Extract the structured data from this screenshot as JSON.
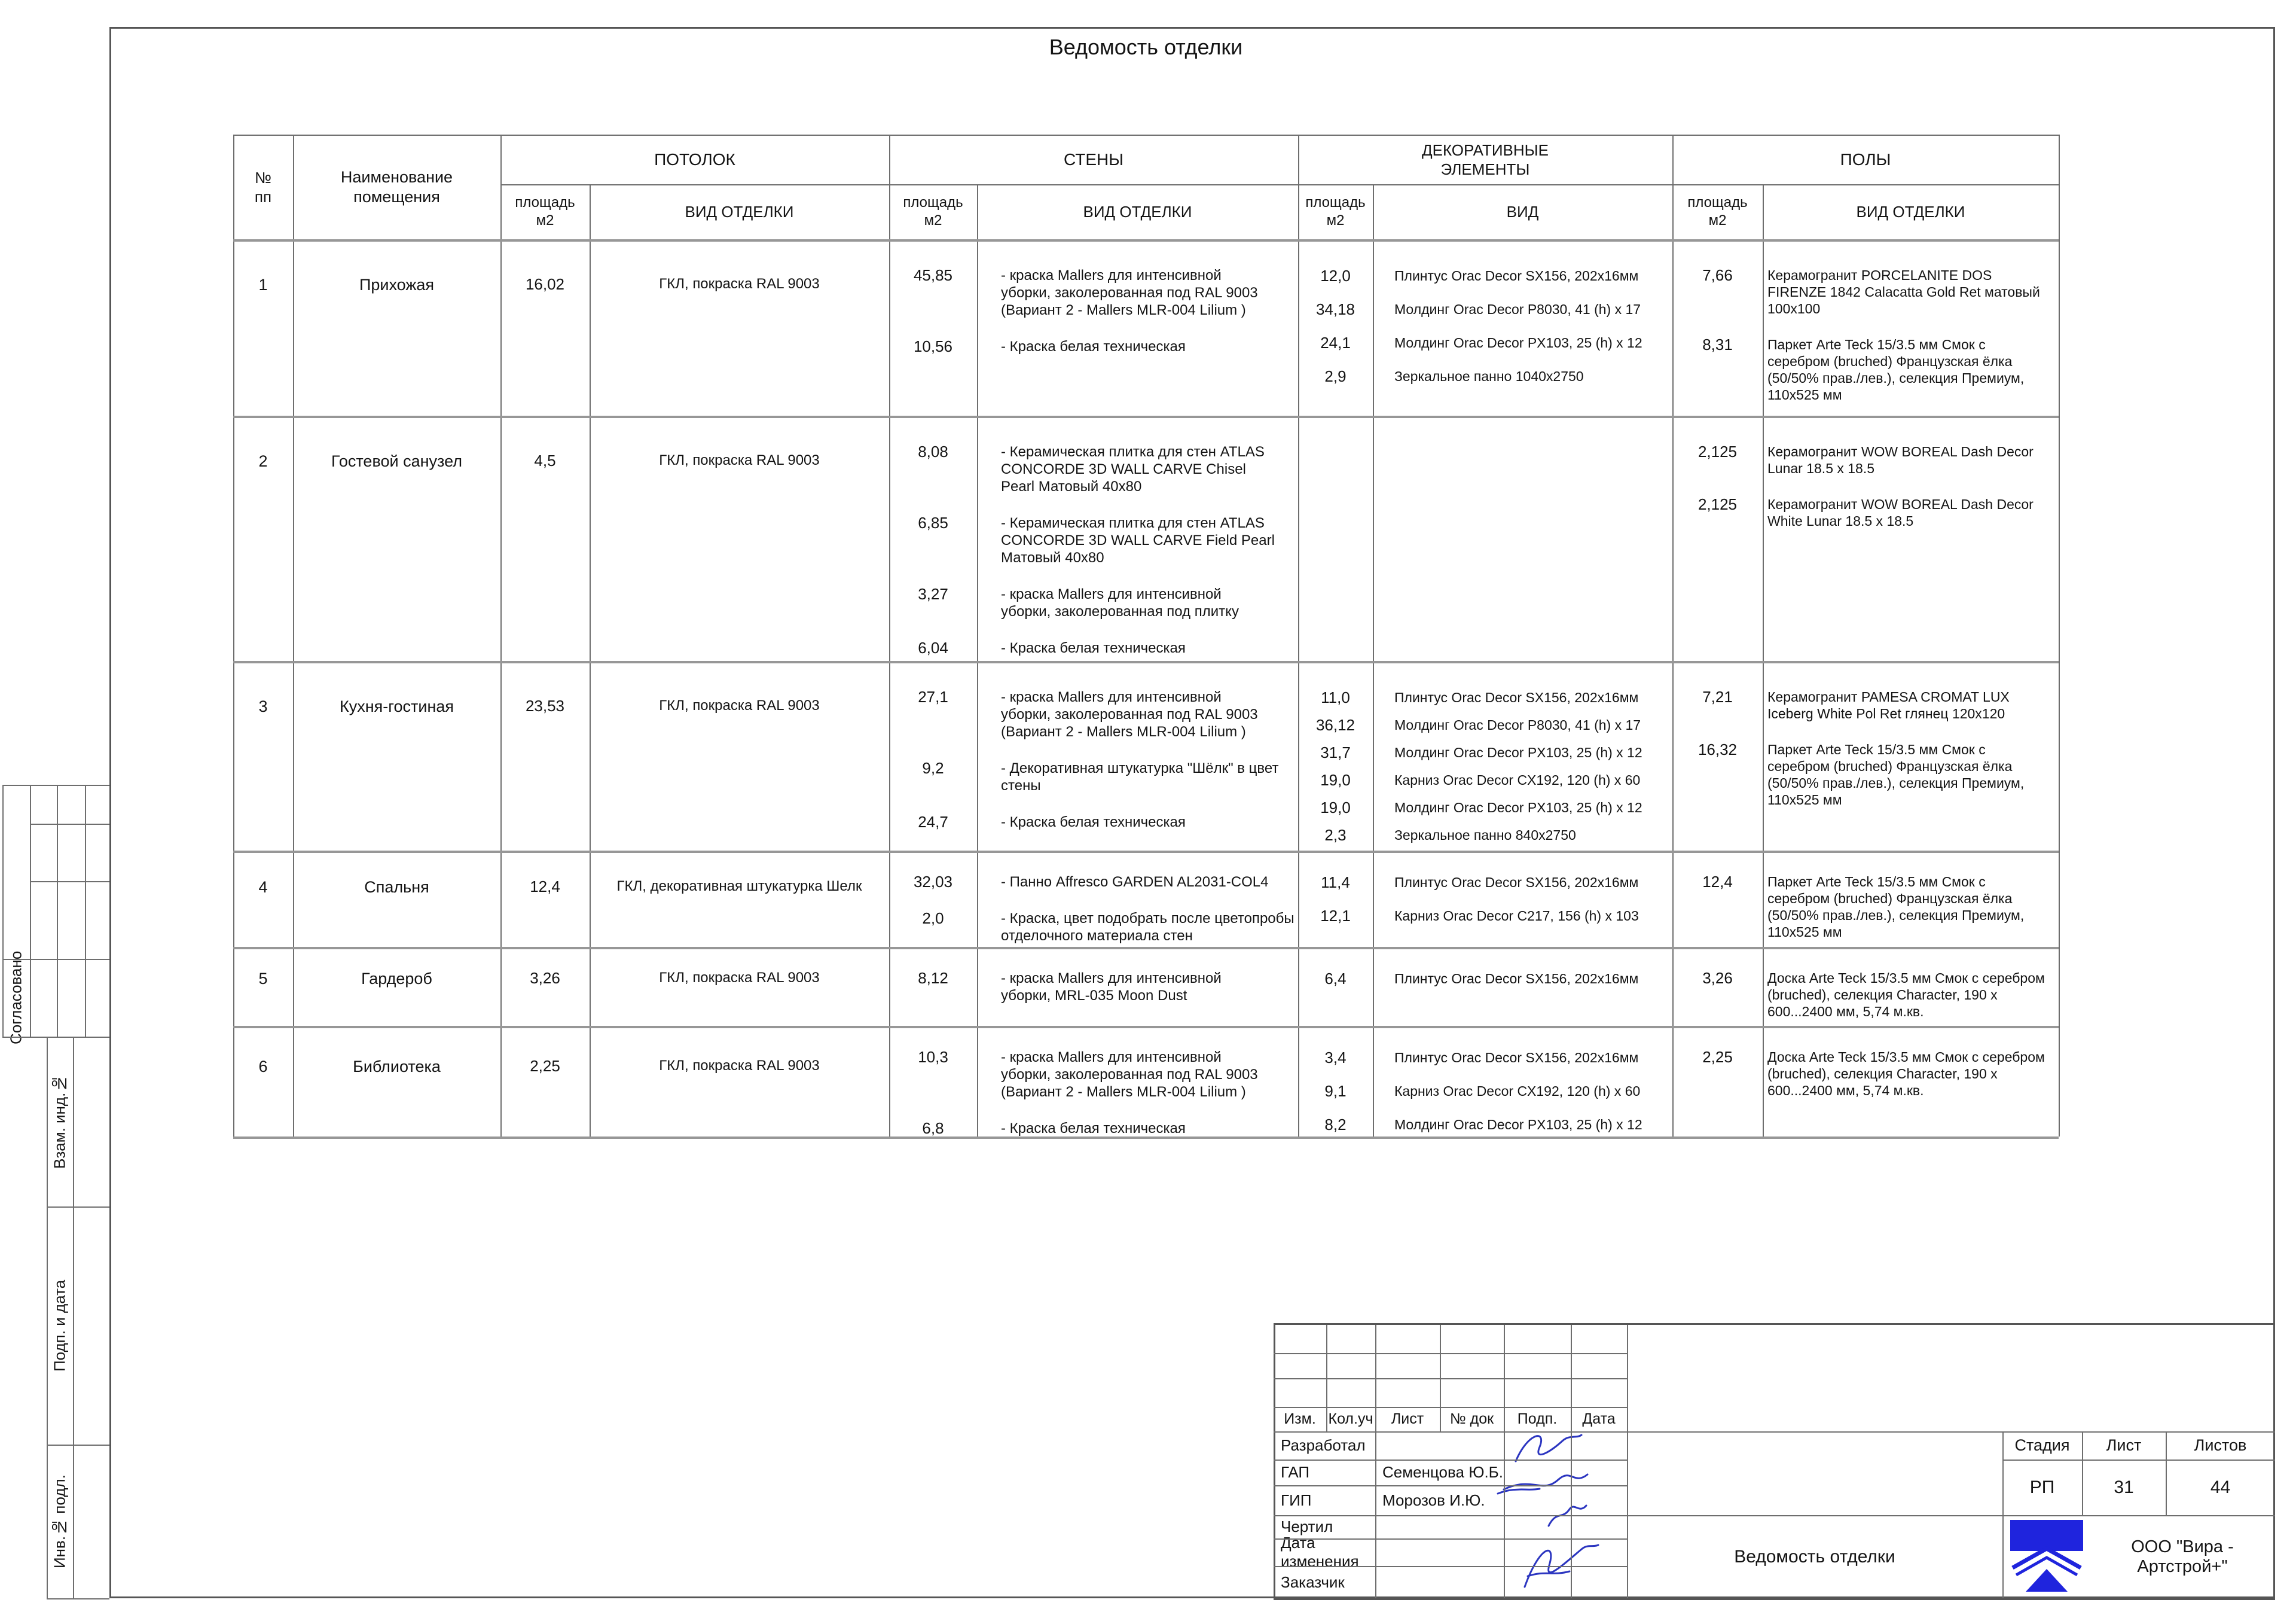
{
  "page_title": "Ведомость отделки",
  "table": {
    "headers": {
      "num": "№\nпп",
      "room": "Наименование\nпомещения",
      "area": "площадь\nм2",
      "finish_type": "ВИД  ОТДЕЛКИ",
      "vid": "ВИД",
      "groups": {
        "ceiling": "ПОТОЛОК",
        "walls": "СТЕНЫ",
        "decor": "ДЕКОРАТИВНЫЕ\nЭЛЕМЕНТЫ",
        "floors": "ПОЛЫ"
      }
    },
    "rows": [
      {
        "num": "1",
        "room": "Прихожая",
        "ceiling": {
          "area": "16,02",
          "desc": "ГКЛ, покраска RAL 9003"
        },
        "walls": [
          {
            "area": "45,85",
            "desc": "- краска Mallers для интенсивной\nуборки, заколерованная под RAL 9003\n(Вариант 2 - Mallers MLR-004 Lilium )"
          },
          {
            "area": "10,56",
            "desc": "- Краска белая техническая"
          }
        ],
        "decor": [
          {
            "area": "12,0",
            "desc": "Плинтус Orac Decor SX156,  202х16мм"
          },
          {
            "area": "34,18",
            "desc": "Молдинг Orac Decor P8030, 41 (h) х 17"
          },
          {
            "area": "24,1",
            "desc": "Молдинг Orac Decor PX103,  25 (h) х 12"
          },
          {
            "area": "2,9",
            "desc": "Зеркальное панно 1040х2750"
          }
        ],
        "floors": [
          {
            "area": "7,66",
            "desc": "Керамогранит PORCELANITE DOS\nFIRENZE 1842 Calacatta Gold Ret матовый\n100х100"
          },
          {
            "area": "8,31",
            "desc": "Паркет Arte Teck 15/3.5 мм  Смок с\nсеребром (bruched) Французская ёлка\n(50/50% прав./лев.), селекция Премиум,\n110х525 мм"
          }
        ]
      },
      {
        "num": "2",
        "room": "Гостевой санузел",
        "ceiling": {
          "area": "4,5",
          "desc": "ГКЛ, покраска RAL 9003"
        },
        "walls": [
          {
            "area": "8,08",
            "desc": "- Керамическая плитка для стен ATLAS\nCONCORDE 3D WALL CARVE Chisel\nPearl Матовый 40х80"
          },
          {
            "area": "6,85",
            "desc": "- Керамическая плитка для стен ATLAS\nCONCORDE 3D WALL CARVE Field Pearl\nМатовый 40х80"
          },
          {
            "area": "3,27",
            "desc": "- краска Mallers для интенсивной\nуборки, заколерованная под плитку"
          },
          {
            "area": "6,04",
            "desc": "- Краска белая техническая"
          }
        ],
        "decor": [],
        "floors": [
          {
            "area": "2,125",
            "desc": "Керамогранит WOW BOREAL Dash Decor\nLunar 18.5 х 18.5"
          },
          {
            "area": "2,125",
            "desc": "Керамогранит WOW BOREAL Dash Decor\nWhite Lunar 18.5 х 18.5"
          }
        ]
      },
      {
        "num": "3",
        "room": "Кухня-гостиная",
        "ceiling": {
          "area": "23,53",
          "desc": "ГКЛ, покраска RAL 9003"
        },
        "walls": [
          {
            "area": "27,1",
            "desc": "- краска Mallers для интенсивной\nуборки, заколерованная под RAL 9003\n(Вариант 2 - Mallers MLR-004 Lilium )"
          },
          {
            "area": "9,2",
            "desc": "- Декоративная штукатурка \"Шёлк\" в цвет\nстены"
          },
          {
            "area": "24,7",
            "desc": "- Краска белая техническая"
          }
        ],
        "decor": [
          {
            "area": "11,0",
            "desc": "Плинтус Orac Decor SX156,  202х16мм"
          },
          {
            "area": "36,12",
            "desc": "Молдинг Orac Decor P8030, 41 (h) х 17"
          },
          {
            "area": "31,7",
            "desc": "Молдинг Orac Decor PX103,  25 (h) х 12"
          },
          {
            "area": "19,0",
            "desc": "Карниз Orac Decor CX192,  120 (h) х 60"
          },
          {
            "area": "19,0",
            "desc": "Молдинг Orac Decor PX103, 25 (h) х 12"
          },
          {
            "area": "2,3",
            "desc": "Зеркальное панно 840х2750"
          }
        ],
        "floors": [
          {
            "area": "7,21",
            "desc": "Керамогранит PAMESA CROMAT LUX\nIceberg White Pol Ret глянец 120х120"
          },
          {
            "area": "16,32",
            "desc": "Паркет Arte Teck 15/3.5 мм  Смок с\nсеребром (bruched) Французская ёлка\n(50/50% прав./лев.), селекция Премиум,\n110х525 мм"
          }
        ]
      },
      {
        "num": "4",
        "room": "Спальня",
        "ceiling": {
          "area": "12,4",
          "desc": "ГКЛ, декоративная штукатурка Шелк"
        },
        "walls": [
          {
            "area": "32,03",
            "desc": "- Панно Affresco GARDEN AL2031-COL4"
          },
          {
            "area": "2,0",
            "desc": "- Краска, цвет подобрать после цветопробы\nотделочного материала стен"
          }
        ],
        "decor": [
          {
            "area": "11,4",
            "desc": "Плинтус Orac Decor SX156,  202х16мм"
          },
          {
            "area": "12,1",
            "desc": "Карниз Orac Decor C217, 156 (h) х 103"
          }
        ],
        "floors": [
          {
            "area": "12,4",
            "desc": "Паркет Arte Teck 15/3.5 мм  Смок с\nсеребром (bruched) Французская ёлка\n(50/50% прав./лев.), селекция Премиум,\n110х525 мм"
          }
        ]
      },
      {
        "num": "5",
        "room": "Гардероб",
        "ceiling": {
          "area": "3,26",
          "desc": "ГКЛ, покраска RAL 9003"
        },
        "walls": [
          {
            "area": "8,12",
            "desc": "- краска Mallers для интенсивной\nуборки, MRL-035 Moon Dust"
          }
        ],
        "decor": [
          {
            "area": "6,4",
            "desc": "Плинтус Orac Decor SX156,  202х16мм"
          }
        ],
        "floors": [
          {
            "area": "3,26",
            "desc": "Доска Arte Teck 15/3.5 мм  Смок с серебром\n(bruched), селекция Character, 190 х\n600...2400 мм, 5,74 м.кв."
          }
        ]
      },
      {
        "num": "6",
        "room": "Библиотека",
        "ceiling": {
          "area": "2,25",
          "desc": "ГКЛ, покраска RAL 9003"
        },
        "walls": [
          {
            "area": "10,3",
            "desc": "- краска Mallers для интенсивной\nуборки, заколерованная под RAL 9003\n(Вариант 2 - Mallers MLR-004 Lilium )"
          },
          {
            "area": "6,8",
            "desc": "- Краска белая техническая"
          }
        ],
        "decor": [
          {
            "area": "3,4",
            "desc": "Плинтус Orac Decor SX156,  202х16мм"
          },
          {
            "area": "9,1",
            "desc": "Карниз Orac Decor CX192,  120 (h) х 60"
          },
          {
            "area": "8,2",
            "desc": "Молдинг Orac Decor PX103, 25 (h) х 12"
          }
        ],
        "floors": [
          {
            "area": "2,25",
            "desc": "Доска Arte Teck 15/3.5 мм  Смок с серебром\n(bruched), селекция Character, 190 х\n600...2400 мм, 5,74 м.кв."
          }
        ]
      }
    ]
  },
  "stamp": {
    "rev_headers": [
      "Изм.",
      "Кол.уч",
      "Лист",
      "№ док",
      "Подп.",
      "Дата"
    ],
    "roles": [
      {
        "label": "Разработал",
        "name": ""
      },
      {
        "label": "ГАП",
        "name": "Семенцова Ю.Б."
      },
      {
        "label": "ГИП",
        "name": "Морозов И.Ю."
      },
      {
        "label": "Чертил",
        "name": ""
      },
      {
        "label": "Дата изменения",
        "name": ""
      },
      {
        "label": "Заказчик",
        "name": ""
      }
    ],
    "stage_header": [
      "Стадия",
      "Лист",
      "Листов"
    ],
    "stage_values": [
      "РП",
      "31",
      "44"
    ],
    "doc_title": "Ведомость отделки",
    "company": "ООО \"Вира - Артстрой+\"",
    "signature_color": "#2b35c0",
    "logo_color": "#1f24dd"
  },
  "side": {
    "agreed": "Согласовано",
    "labels": [
      "Взам. инд.№",
      "Подп. и дата",
      "Инв.№ подл."
    ]
  }
}
